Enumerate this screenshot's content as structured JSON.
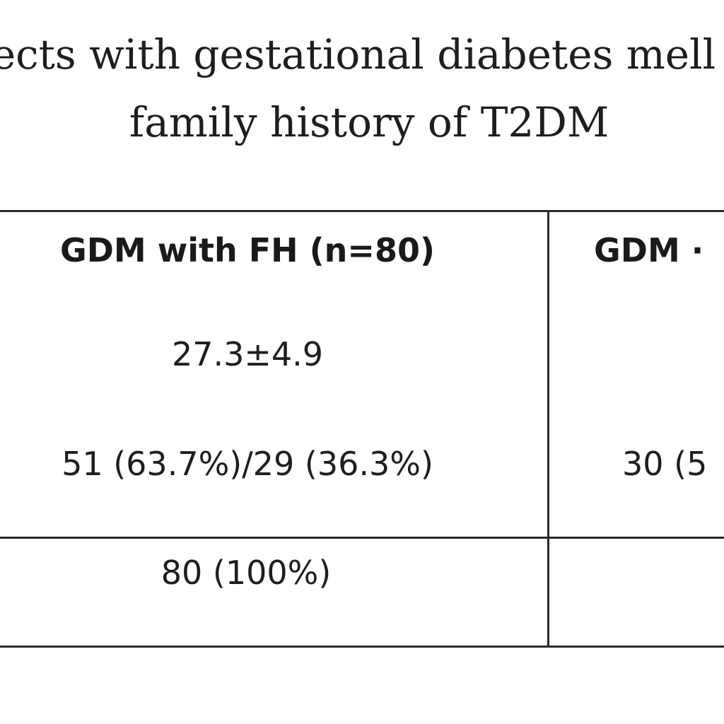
{
  "caption": {
    "line1": "ects with gestational diabetes mell",
    "line2": "family history of T2DM"
  },
  "table": {
    "headers": [
      "GDM with FH (n=80)",
      "GDM ·"
    ],
    "rows": [
      [
        "27.3±4.9",
        ""
      ],
      [
        "51 (63.7%)/29 (36.3%)",
        "30 (5"
      ],
      [
        "80 (100%)",
        ""
      ]
    ]
  }
}
